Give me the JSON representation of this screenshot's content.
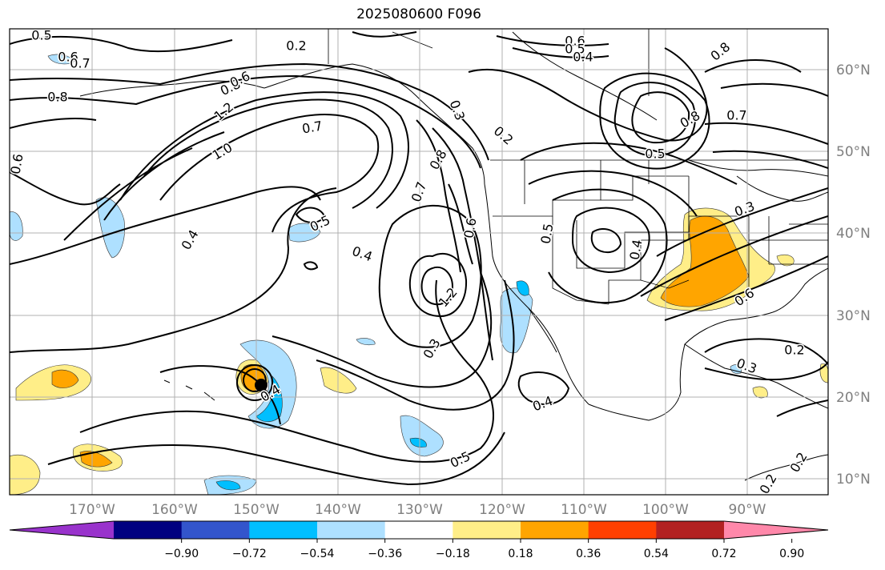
{
  "title": "2025080600 F096",
  "lat_labels": [
    "60°N",
    "50°N",
    "40°N",
    "30°N",
    "20°N",
    "10°N"
  ],
  "lon_labels": [
    "170°W",
    "160°W",
    "150°W",
    "140°W",
    "130°W",
    "120°W",
    "110°W",
    "100°W",
    "90°W"
  ],
  "colorbar": {
    "ticks": [
      "−0.90",
      "−0.72",
      "−0.54",
      "−0.36",
      "−0.18",
      "0.18",
      "0.36",
      "0.54",
      "0.72",
      "0.90"
    ],
    "colors": [
      "#9933cc",
      "#000080",
      "#3355cc",
      "#00bfff",
      "#aee0ff",
      "#ffffff",
      "#ffee88",
      "#ffa500",
      "#ff4000",
      "#b22222",
      "#ff88aa"
    ]
  },
  "contour_labels": [
    "0.5",
    "0.6",
    "0.7",
    "0.2",
    "0.6",
    "0.5",
    "0.4",
    "0.8",
    "0.6",
    "0.8",
    "0.8",
    "1.2",
    "0.7",
    "0.3",
    "0.2",
    "0.8",
    "0.7",
    "1.0",
    "0.6",
    "0.8",
    "0.5",
    "0.7",
    "0.6",
    "0.4",
    "0.5",
    "0.4",
    "1.2",
    "0.5",
    "0.3",
    "0.4",
    "0.3",
    "0.6",
    "0.2",
    "0.4",
    "0.3",
    "0.4",
    "0.5",
    "0.2",
    "0.2"
  ]
}
